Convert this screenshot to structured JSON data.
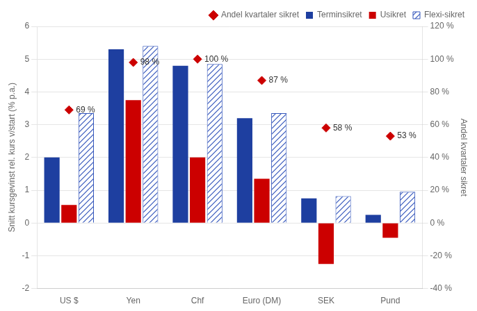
{
  "chart_data": {
    "type": "bar",
    "categories": [
      "US $",
      "Yen",
      "Chf",
      "Euro (DM)",
      "SEK",
      "Pund"
    ],
    "series": [
      {
        "name": "Terminsikret",
        "color": "#1E3FA0",
        "values": [
          2.0,
          5.3,
          4.8,
          3.2,
          0.75,
          0.25
        ]
      },
      {
        "name": "Usikret",
        "color": "#CC0000",
        "values": [
          0.55,
          3.75,
          2.0,
          1.35,
          -1.25,
          -0.45
        ]
      },
      {
        "name": "Flexi-sikret",
        "color": "#3355BB",
        "values": [
          3.35,
          5.4,
          4.85,
          3.35,
          0.82,
          0.95
        ]
      },
      {
        "name": "Andel kvartaler sikret",
        "type": "scatter",
        "marker": "diamond",
        "color": "#CC0000",
        "axis": "y2",
        "values": [
          69,
          98,
          100,
          87,
          58,
          53
        ],
        "value_labels": [
          "69 %",
          "98 %",
          "100 %",
          "87 %",
          "58 %",
          "53 %"
        ]
      }
    ],
    "ylabel": "Snitt kursgevinst rel. kurs v/start (% p.a.)",
    "y2label": "Andel kvartaler sikret",
    "ylim": [
      -2,
      6
    ],
    "yticks": [
      -2,
      -1,
      0,
      1,
      2,
      3,
      4,
      5,
      6
    ],
    "y2lim": [
      -40,
      120
    ],
    "y2ticks": [
      {
        "value": -40,
        "label": "-40 %"
      },
      {
        "value": -20,
        "label": "-20 %"
      },
      {
        "value": 0,
        "label": "0 %"
      },
      {
        "value": 20,
        "label": "20 %"
      },
      {
        "value": 40,
        "label": "40 %"
      },
      {
        "value": 60,
        "label": "60 %"
      },
      {
        "value": 80,
        "label": "80 %"
      },
      {
        "value": 100,
        "label": "100 %"
      },
      {
        "value": 120,
        "label": "120 %"
      }
    ],
    "data_labels": true,
    "grid": true,
    "legend": "upper right"
  }
}
